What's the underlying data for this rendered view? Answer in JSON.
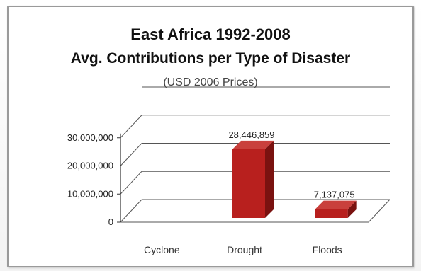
{
  "chart_data": {
    "type": "bar",
    "title": "East Africa 1992-2008",
    "subtitle": "Avg. Contributions per Type of Disaster",
    "note": "(USD 2006 Prices)",
    "categories": [
      "Cyclone",
      "Drought",
      "Floods"
    ],
    "values": [
      0,
      28446859,
      7137075
    ],
    "data_labels": [
      "",
      "28,446,859",
      "7,137,075"
    ],
    "ylim": [
      0,
      40000000
    ],
    "yticks": [
      0,
      10000000,
      20000000,
      30000000
    ],
    "ytick_labels": [
      "0",
      "10,000,000",
      "20,000,000",
      "30,000,000"
    ],
    "grid": true,
    "style": "3d-column",
    "colors": {
      "bar_front": "#b8201e",
      "bar_side": "#7a1210",
      "bar_top": "#c9403c"
    }
  }
}
